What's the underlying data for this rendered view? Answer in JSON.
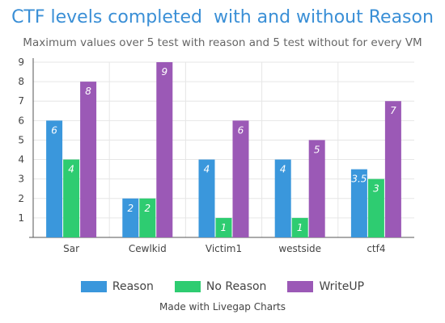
{
  "chart_data": {
    "type": "bar",
    "title": "CTF levels completed  with and without Reason",
    "subtitle": "Maximum values over 5 test with reason and 5 test without for every VM",
    "categories": [
      "Sar",
      "Cewlkid",
      "Victim1",
      "westside",
      "ctf4"
    ],
    "series": [
      {
        "name": "Reason",
        "color": "#3a97dc",
        "values": [
          6,
          2,
          4,
          4,
          3.5
        ]
      },
      {
        "name": "No Reason",
        "color": "#2ecc71",
        "values": [
          4,
          2,
          1,
          1,
          3
        ]
      },
      {
        "name": "WriteUP",
        "color": "#9b59b6",
        "values": [
          8,
          9,
          6,
          5,
          7
        ]
      }
    ],
    "ylim": [
      0,
      9
    ],
    "yticks": [
      1,
      2,
      3,
      4,
      5,
      6,
      7,
      8,
      9
    ],
    "grid": true,
    "legend_position": "bottom"
  },
  "credit": "Made with Livegap Charts"
}
